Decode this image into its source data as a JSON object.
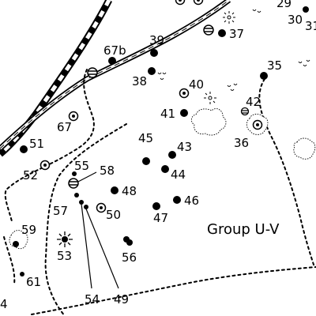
{
  "map": {
    "area_label": "Group U-V",
    "labels": {
      "l29": "29",
      "l30": "30",
      "l31": "31",
      "l35": "35",
      "l36": "36",
      "l37": "37",
      "l38": "38",
      "l39": "39",
      "l40": "40",
      "l41": "41",
      "l42": "42",
      "l43": "43",
      "l44": "44",
      "l45": "45",
      "l46": "46",
      "l47": "47",
      "l48": "48",
      "l49": "49",
      "l50": "50",
      "l51": "51",
      "l52": "52",
      "l53": "53",
      "l54": "54",
      "l55": "55",
      "l56": "56",
      "l57": "57",
      "l58": "58",
      "l59": "59",
      "l61": "61",
      "l67": "67",
      "l67b": "67b",
      "l4": "4"
    },
    "symbols": {
      "dot": "filled-dot-icon",
      "ring": "ringed-dot-icon",
      "disc": "barred-circle-icon",
      "rays": "radiant-icon",
      "brush": "bush-outline-icon",
      "birds": "bird-marks-icon"
    },
    "colors": {
      "ink": "#000000",
      "paper": "#ffffff"
    }
  }
}
